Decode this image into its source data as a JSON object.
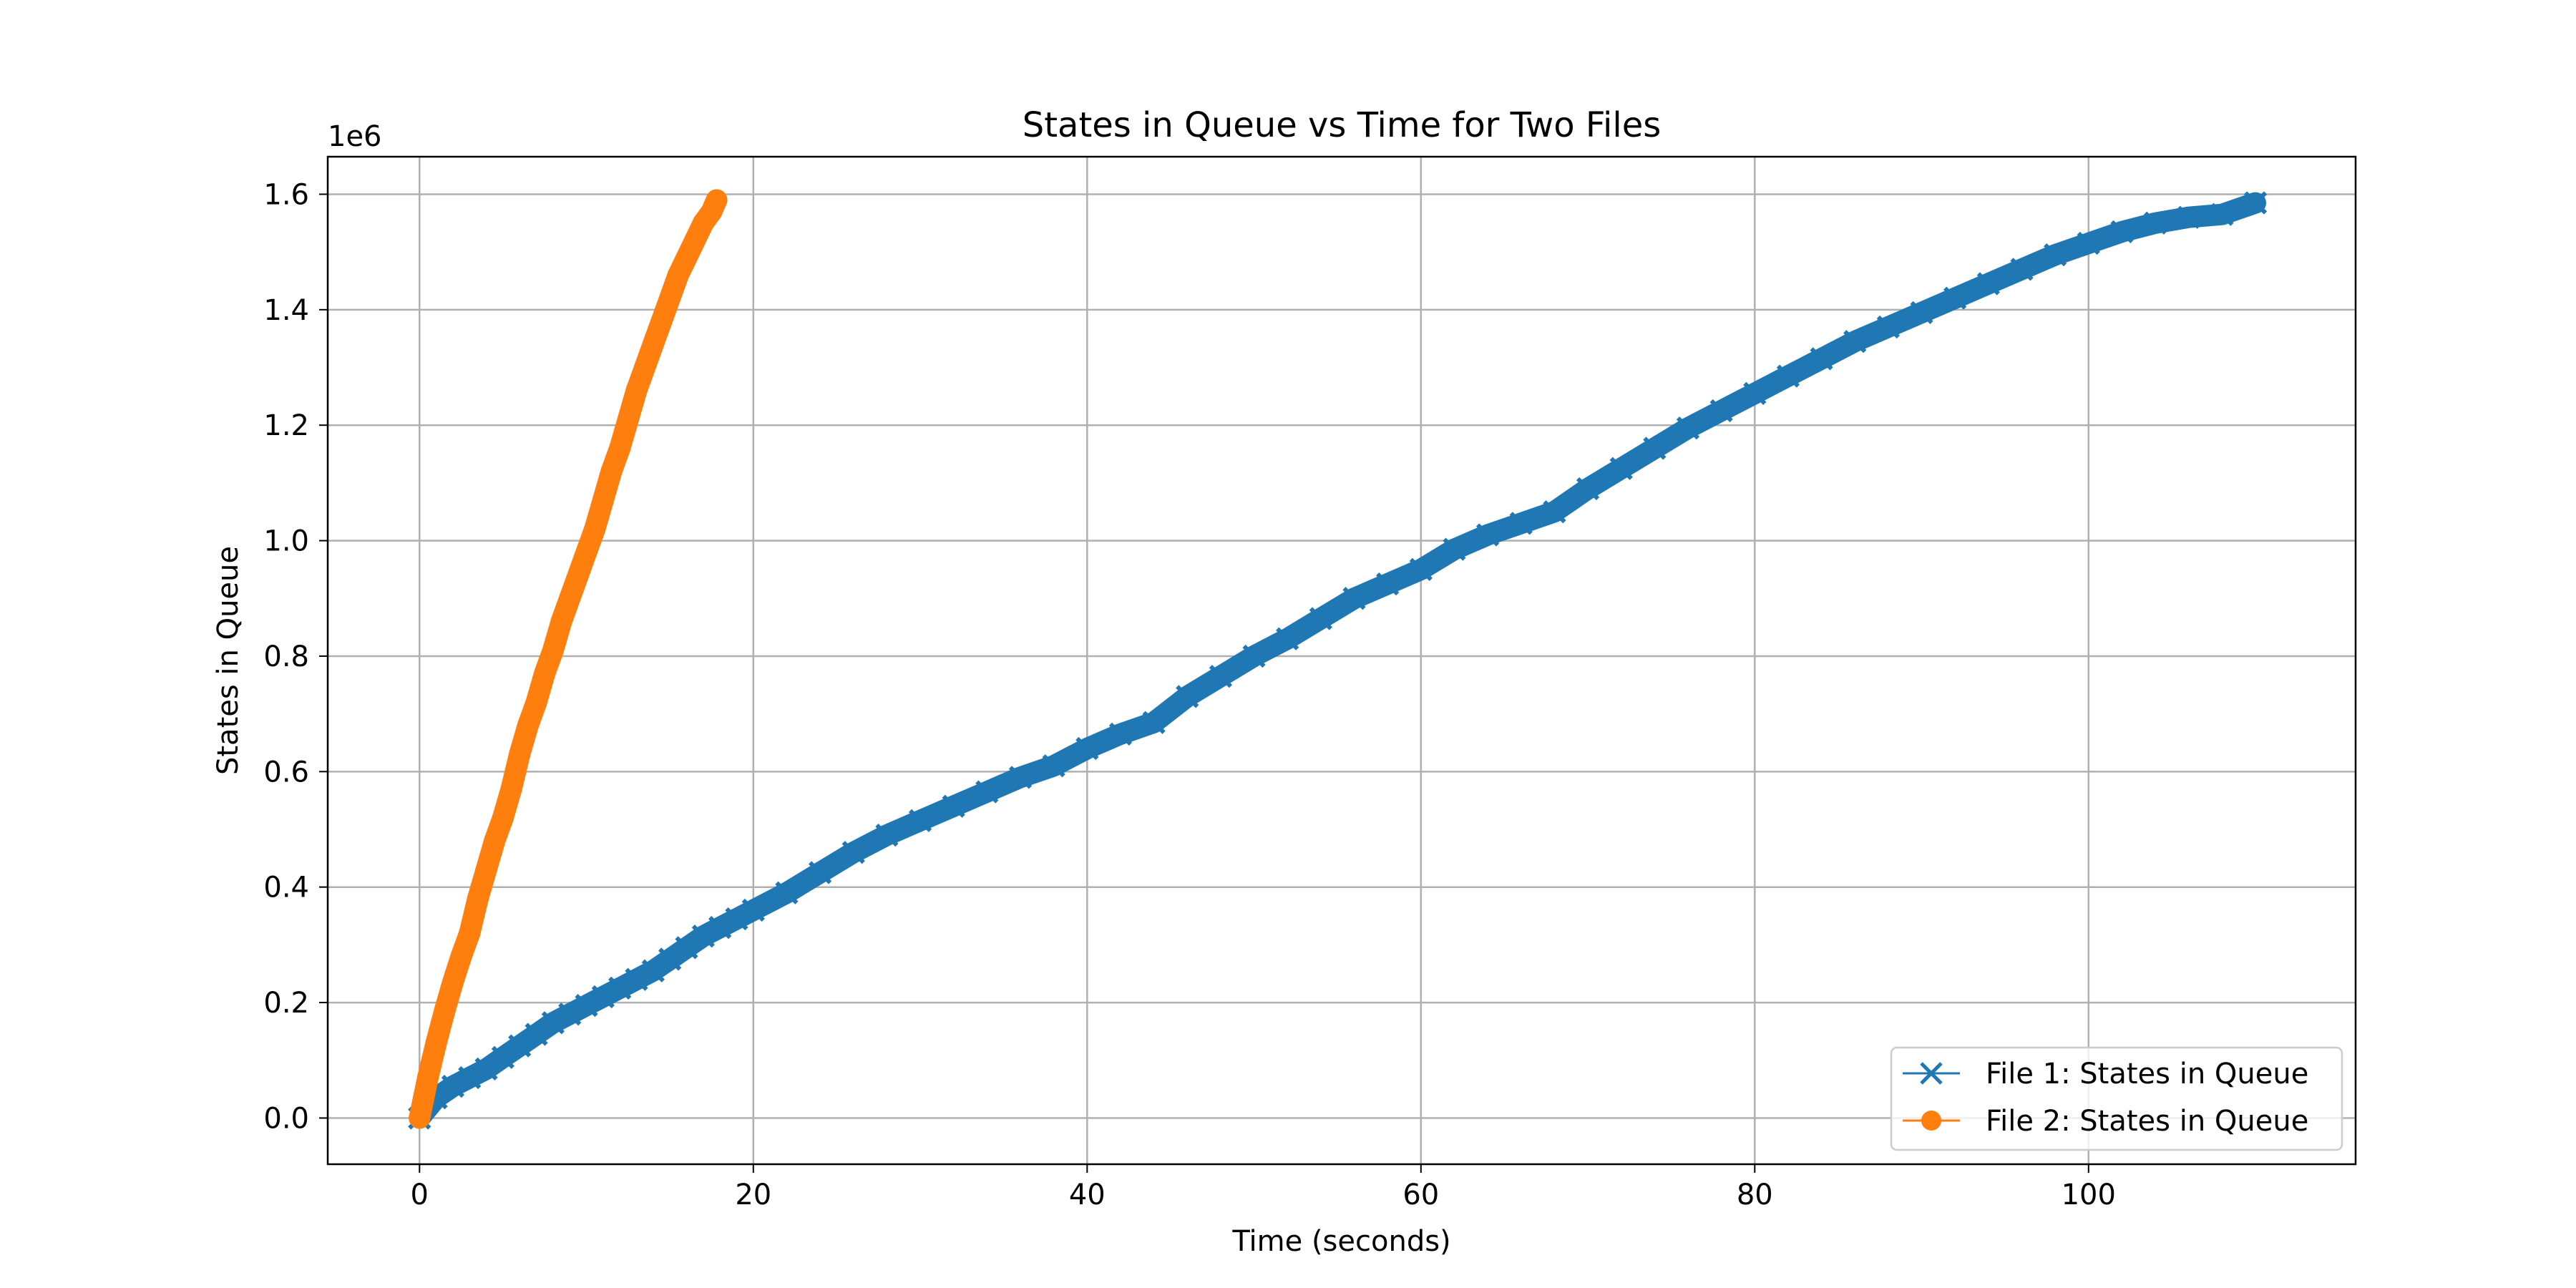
{
  "chart_data": {
    "type": "line",
    "title": "States in Queue vs Time for Two Files",
    "xlabel": "Time (seconds)",
    "ylabel": "States in Queue",
    "offset_label": "1e6",
    "xlim": [
      -5.5,
      116
    ],
    "ylim": [
      -0.08,
      1.665
    ],
    "y_scale": 1000000,
    "x_ticks": [
      0,
      20,
      40,
      60,
      80,
      100
    ],
    "y_ticks": [
      0.0,
      0.2,
      0.4,
      0.6,
      0.8,
      1.0,
      1.2,
      1.4,
      1.6
    ],
    "x_tick_labels": [
      "0",
      "20",
      "40",
      "60",
      "80",
      "100"
    ],
    "y_tick_labels": [
      "0.0",
      "0.2",
      "0.4",
      "0.6",
      "0.8",
      "1.0",
      "1.2",
      "1.4",
      "1.6"
    ],
    "grid": true,
    "legend_position": "lower-right",
    "series": [
      {
        "name": "File 1: States in Queue",
        "color": "#1f77b4",
        "marker": "x",
        "x": [
          0,
          1,
          2,
          3,
          4,
          5,
          6,
          7,
          8,
          9,
          10,
          11,
          12,
          13,
          14,
          15,
          16,
          17,
          18,
          19,
          20,
          22,
          24,
          26,
          28,
          30,
          32,
          34,
          36,
          38,
          40,
          42,
          44,
          46,
          48,
          50,
          52,
          54,
          56,
          58,
          60,
          62,
          64,
          66,
          68,
          70,
          72,
          74,
          76,
          78,
          80,
          82,
          84,
          86,
          88,
          90,
          92,
          94,
          96,
          98,
          100,
          102,
          104,
          106,
          108,
          110
        ],
        "values": [
          0.0,
          0.035,
          0.055,
          0.07,
          0.085,
          0.105,
          0.125,
          0.145,
          0.165,
          0.18,
          0.195,
          0.21,
          0.225,
          0.24,
          0.255,
          0.275,
          0.295,
          0.315,
          0.33,
          0.345,
          0.36,
          0.39,
          0.425,
          0.46,
          0.49,
          0.515,
          0.54,
          0.565,
          0.59,
          0.61,
          0.64,
          0.665,
          0.685,
          0.73,
          0.765,
          0.8,
          0.83,
          0.865,
          0.9,
          0.925,
          0.95,
          0.985,
          1.01,
          1.03,
          1.05,
          1.09,
          1.125,
          1.16,
          1.195,
          1.225,
          1.255,
          1.285,
          1.315,
          1.345,
          1.37,
          1.395,
          1.42,
          1.445,
          1.47,
          1.495,
          1.515,
          1.535,
          1.55,
          1.56,
          1.565,
          1.585
        ]
      },
      {
        "name": "File 2: States in Queue",
        "color": "#ff7f0e",
        "marker": "o",
        "x": [
          0,
          0.5,
          1,
          1.5,
          2,
          2.5,
          3,
          3.5,
          4,
          4.5,
          5,
          5.5,
          6,
          6.5,
          7,
          7.5,
          8,
          8.5,
          9,
          9.5,
          10,
          10.5,
          11,
          11.5,
          12,
          12.5,
          13,
          13.5,
          14,
          14.5,
          15,
          15.5,
          16,
          16.5,
          17,
          17.5,
          17.8
        ],
        "values": [
          0.0,
          0.07,
          0.13,
          0.185,
          0.235,
          0.28,
          0.32,
          0.38,
          0.43,
          0.48,
          0.52,
          0.57,
          0.63,
          0.68,
          0.72,
          0.77,
          0.81,
          0.86,
          0.9,
          0.94,
          0.98,
          1.02,
          1.07,
          1.12,
          1.16,
          1.21,
          1.26,
          1.3,
          1.34,
          1.38,
          1.42,
          1.46,
          1.49,
          1.52,
          1.55,
          1.57,
          1.59
        ]
      }
    ]
  }
}
